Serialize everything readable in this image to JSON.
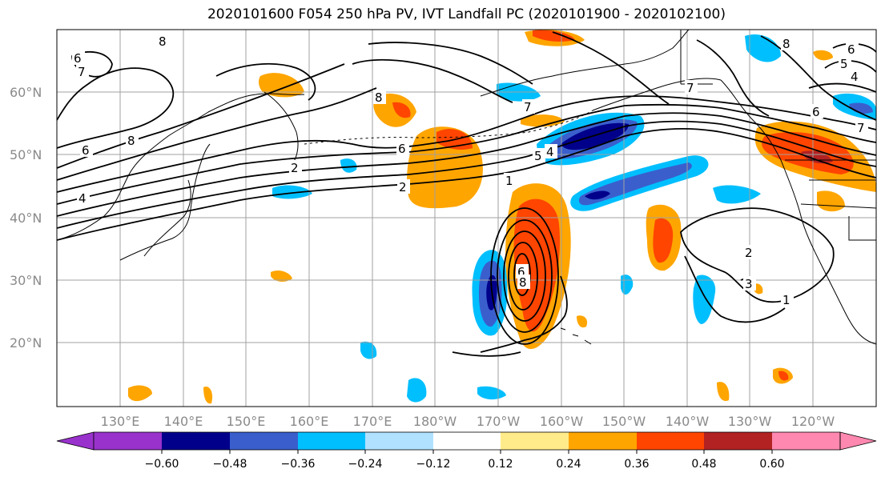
{
  "title": "2020101600 F054 250 hPa PV, IVT Landfall PC (2020101900 - 2020102100)",
  "lat_labels": [
    "60°N",
    "50°N",
    "40°N",
    "30°N",
    "20°N"
  ],
  "lon_labels": [
    "130°E",
    "140°E",
    "150°E",
    "160°E",
    "170°E",
    "180°W",
    "170°W",
    "160°W",
    "150°W",
    "140°W",
    "130°W",
    "120°W"
  ],
  "contour_labels": [
    "8",
    "6",
    "7",
    "6",
    "8",
    "2",
    "4",
    "8",
    "7",
    "6",
    "5",
    "4",
    "2",
    "1",
    "6",
    "8",
    "2",
    "3",
    "1",
    "8",
    "7",
    "6",
    "5",
    "4",
    "6",
    "7"
  ],
  "colorbar": {
    "colors": [
      "#9932cc",
      "#00008b",
      "#3a5fcd",
      "#00bfff",
      "#b0e2ff",
      "#ffffff",
      "#ffeb8a",
      "#ffa500",
      "#ff4500",
      "#b22222",
      "#ff88b0"
    ],
    "tick_labels": [
      "−0.60",
      "−0.48",
      "−0.36",
      "−0.24",
      "−0.12",
      "0.12",
      "0.24",
      "0.36",
      "0.48",
      "0.60"
    ]
  },
  "colors": {
    "grid": "#a0a0a0",
    "contour": "#000000",
    "coast": "#000000"
  }
}
